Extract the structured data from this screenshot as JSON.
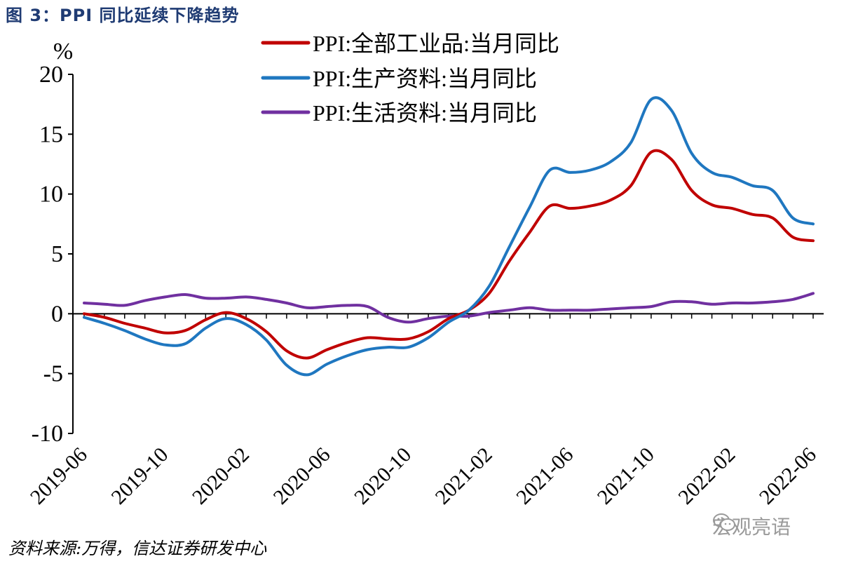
{
  "figure": {
    "title": "图 3：PPI 同比延续下降趋势",
    "source": "资料来源:万得，信达证券研发中心",
    "watermark": "宏观亮语"
  },
  "chart_data": {
    "type": "line",
    "ylabel": "%",
    "ylim": [
      -10,
      20
    ],
    "yticks": [
      20,
      15,
      10,
      5,
      0,
      -5,
      -10
    ],
    "legend_position": "top",
    "grid": false,
    "x": [
      "2019-06",
      "2019-07",
      "2019-08",
      "2019-09",
      "2019-10",
      "2019-11",
      "2019-12",
      "2020-01",
      "2020-02",
      "2020-03",
      "2020-04",
      "2020-05",
      "2020-06",
      "2020-07",
      "2020-08",
      "2020-09",
      "2020-10",
      "2020-11",
      "2020-12",
      "2021-01",
      "2021-02",
      "2021-03",
      "2021-04",
      "2021-05",
      "2021-06",
      "2021-07",
      "2021-08",
      "2021-09",
      "2021-10",
      "2021-11",
      "2021-12",
      "2022-01",
      "2022-02",
      "2022-03",
      "2022-04",
      "2022-05",
      "2022-06"
    ],
    "xticks": [
      "2019-06",
      "2019-10",
      "2020-02",
      "2020-06",
      "2020-10",
      "2021-02",
      "2021-06",
      "2021-10",
      "2022-02",
      "2022-06"
    ],
    "series": [
      {
        "name": "PPI:全部工业品:当月同比",
        "color": "#C00000",
        "values": [
          0.0,
          -0.3,
          -0.8,
          -1.2,
          -1.6,
          -1.4,
          -0.5,
          0.1,
          -0.4,
          -1.5,
          -3.1,
          -3.7,
          -3.0,
          -2.4,
          -2.0,
          -2.1,
          -2.1,
          -1.5,
          -0.4,
          0.3,
          1.7,
          4.4,
          6.8,
          9.0,
          8.8,
          9.0,
          9.5,
          10.7,
          13.5,
          12.9,
          10.3,
          9.1,
          8.8,
          8.3,
          8.0,
          6.4,
          6.1
        ]
      },
      {
        "name": "PPI:生产资料:当月同比",
        "color": "#1F77C0",
        "values": [
          -0.3,
          -0.8,
          -1.4,
          -2.1,
          -2.6,
          -2.5,
          -1.2,
          -0.4,
          -0.9,
          -2.2,
          -4.3,
          -5.1,
          -4.2,
          -3.5,
          -3.0,
          -2.8,
          -2.8,
          -2.0,
          -0.7,
          0.3,
          2.3,
          5.6,
          8.9,
          12.0,
          11.8,
          12.0,
          12.7,
          14.3,
          17.9,
          17.0,
          13.4,
          11.8,
          11.4,
          10.7,
          10.3,
          8.0,
          7.5
        ]
      },
      {
        "name": "PPI:生活资料:当月同比",
        "color": "#7030A0",
        "values": [
          0.9,
          0.8,
          0.7,
          1.1,
          1.4,
          1.6,
          1.3,
          1.3,
          1.4,
          1.2,
          0.9,
          0.5,
          0.6,
          0.7,
          0.6,
          -0.3,
          -0.7,
          -0.4,
          -0.2,
          -0.2,
          0.1,
          0.3,
          0.5,
          0.3,
          0.3,
          0.3,
          0.4,
          0.5,
          0.6,
          1.0,
          1.0,
          0.8,
          0.9,
          0.9,
          1.0,
          1.2,
          1.7
        ]
      }
    ]
  }
}
